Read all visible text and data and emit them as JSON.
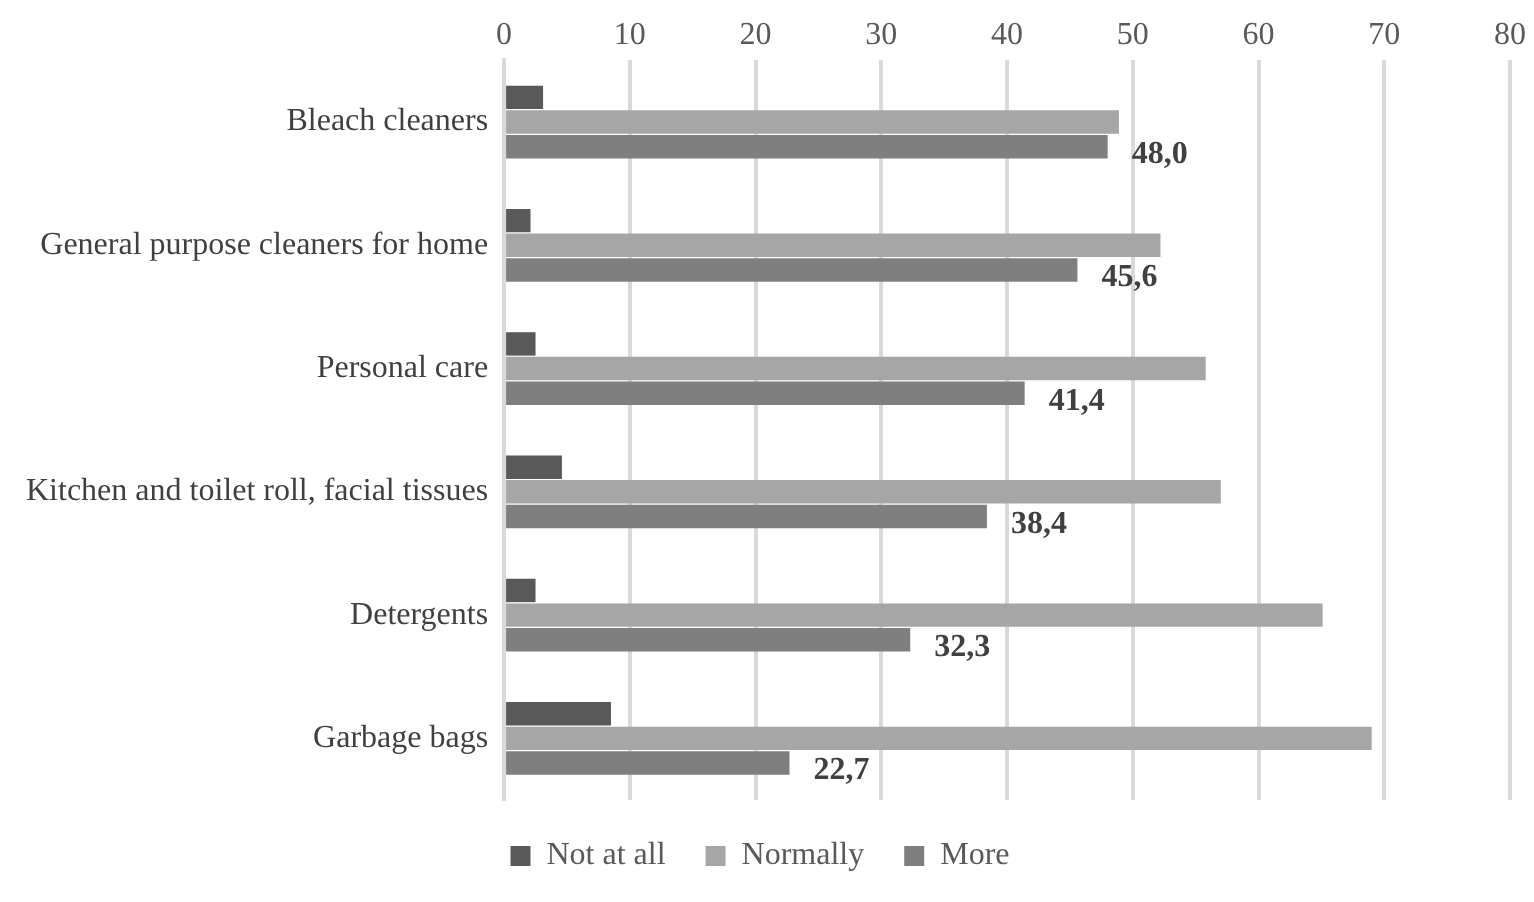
{
  "chart_data": {
    "type": "bar",
    "orientation": "horizontal",
    "categories": [
      "Bleach cleaners",
      "General purpose cleaners for home",
      "Personal care",
      "Kitchen and toilet roll, facial tissues",
      "Detergents",
      "Garbage bags"
    ],
    "series": [
      {
        "name": "Not at all",
        "color": "#595959",
        "values": [
          3.1,
          2.1,
          2.5,
          4.6,
          2.5,
          8.5
        ]
      },
      {
        "name": "Normally",
        "color": "#a6a6a6",
        "values": [
          48.9,
          52.2,
          55.8,
          57.0,
          65.1,
          69.0
        ]
      },
      {
        "name": "More",
        "color": "#7f7f7f",
        "values": [
          48.0,
          45.6,
          41.4,
          38.4,
          32.3,
          22.7
        ],
        "value_labels": [
          "48,0",
          "45,6",
          "41,4",
          "38,4",
          "32,3",
          "22,7"
        ]
      }
    ],
    "xlim": [
      0,
      80
    ],
    "xticks": [
      0,
      10,
      20,
      30,
      40,
      50,
      60,
      70,
      80
    ],
    "grid": "x",
    "legend": "bottom"
  }
}
